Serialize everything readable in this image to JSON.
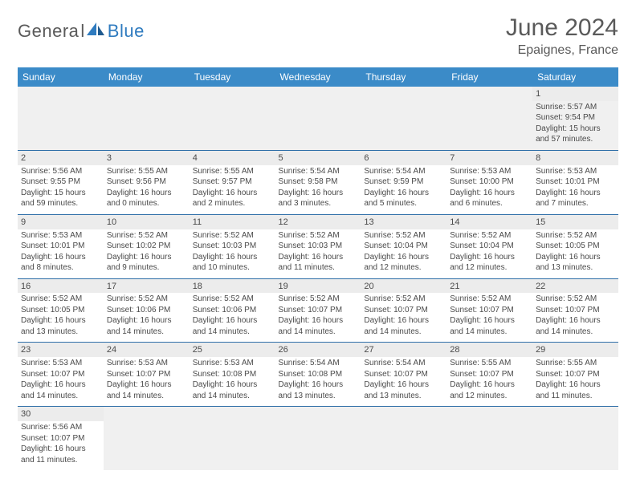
{
  "brand": {
    "general": "Genera",
    "l": "l",
    "blue": "Blue"
  },
  "title": "June 2024",
  "location": "Epaignes, France",
  "header_bg": "#3b8bc8",
  "days_of_week": [
    "Sunday",
    "Monday",
    "Tuesday",
    "Wednesday",
    "Thursday",
    "Friday",
    "Saturday"
  ],
  "first_weekday_index": 6,
  "cells": [
    {
      "n": 1,
      "sr": "5:57 AM",
      "ss": "9:54 PM",
      "dl": "15 hours and 57 minutes."
    },
    {
      "n": 2,
      "sr": "5:56 AM",
      "ss": "9:55 PM",
      "dl": "15 hours and 59 minutes."
    },
    {
      "n": 3,
      "sr": "5:55 AM",
      "ss": "9:56 PM",
      "dl": "16 hours and 0 minutes."
    },
    {
      "n": 4,
      "sr": "5:55 AM",
      "ss": "9:57 PM",
      "dl": "16 hours and 2 minutes."
    },
    {
      "n": 5,
      "sr": "5:54 AM",
      "ss": "9:58 PM",
      "dl": "16 hours and 3 minutes."
    },
    {
      "n": 6,
      "sr": "5:54 AM",
      "ss": "9:59 PM",
      "dl": "16 hours and 5 minutes."
    },
    {
      "n": 7,
      "sr": "5:53 AM",
      "ss": "10:00 PM",
      "dl": "16 hours and 6 minutes."
    },
    {
      "n": 8,
      "sr": "5:53 AM",
      "ss": "10:01 PM",
      "dl": "16 hours and 7 minutes."
    },
    {
      "n": 9,
      "sr": "5:53 AM",
      "ss": "10:01 PM",
      "dl": "16 hours and 8 minutes."
    },
    {
      "n": 10,
      "sr": "5:52 AM",
      "ss": "10:02 PM",
      "dl": "16 hours and 9 minutes."
    },
    {
      "n": 11,
      "sr": "5:52 AM",
      "ss": "10:03 PM",
      "dl": "16 hours and 10 minutes."
    },
    {
      "n": 12,
      "sr": "5:52 AM",
      "ss": "10:03 PM",
      "dl": "16 hours and 11 minutes."
    },
    {
      "n": 13,
      "sr": "5:52 AM",
      "ss": "10:04 PM",
      "dl": "16 hours and 12 minutes."
    },
    {
      "n": 14,
      "sr": "5:52 AM",
      "ss": "10:04 PM",
      "dl": "16 hours and 12 minutes."
    },
    {
      "n": 15,
      "sr": "5:52 AM",
      "ss": "10:05 PM",
      "dl": "16 hours and 13 minutes."
    },
    {
      "n": 16,
      "sr": "5:52 AM",
      "ss": "10:05 PM",
      "dl": "16 hours and 13 minutes."
    },
    {
      "n": 17,
      "sr": "5:52 AM",
      "ss": "10:06 PM",
      "dl": "16 hours and 14 minutes."
    },
    {
      "n": 18,
      "sr": "5:52 AM",
      "ss": "10:06 PM",
      "dl": "16 hours and 14 minutes."
    },
    {
      "n": 19,
      "sr": "5:52 AM",
      "ss": "10:07 PM",
      "dl": "16 hours and 14 minutes."
    },
    {
      "n": 20,
      "sr": "5:52 AM",
      "ss": "10:07 PM",
      "dl": "16 hours and 14 minutes."
    },
    {
      "n": 21,
      "sr": "5:52 AM",
      "ss": "10:07 PM",
      "dl": "16 hours and 14 minutes."
    },
    {
      "n": 22,
      "sr": "5:52 AM",
      "ss": "10:07 PM",
      "dl": "16 hours and 14 minutes."
    },
    {
      "n": 23,
      "sr": "5:53 AM",
      "ss": "10:07 PM",
      "dl": "16 hours and 14 minutes."
    },
    {
      "n": 24,
      "sr": "5:53 AM",
      "ss": "10:07 PM",
      "dl": "16 hours and 14 minutes."
    },
    {
      "n": 25,
      "sr": "5:53 AM",
      "ss": "10:08 PM",
      "dl": "16 hours and 14 minutes."
    },
    {
      "n": 26,
      "sr": "5:54 AM",
      "ss": "10:08 PM",
      "dl": "16 hours and 13 minutes."
    },
    {
      "n": 27,
      "sr": "5:54 AM",
      "ss": "10:07 PM",
      "dl": "16 hours and 13 minutes."
    },
    {
      "n": 28,
      "sr": "5:55 AM",
      "ss": "10:07 PM",
      "dl": "16 hours and 12 minutes."
    },
    {
      "n": 29,
      "sr": "5:55 AM",
      "ss": "10:07 PM",
      "dl": "16 hours and 11 minutes."
    },
    {
      "n": 30,
      "sr": "5:56 AM",
      "ss": "10:07 PM",
      "dl": "16 hours and 11 minutes."
    }
  ],
  "labels": {
    "sunrise": "Sunrise:",
    "sunset": "Sunset:",
    "daylight": "Daylight:"
  }
}
